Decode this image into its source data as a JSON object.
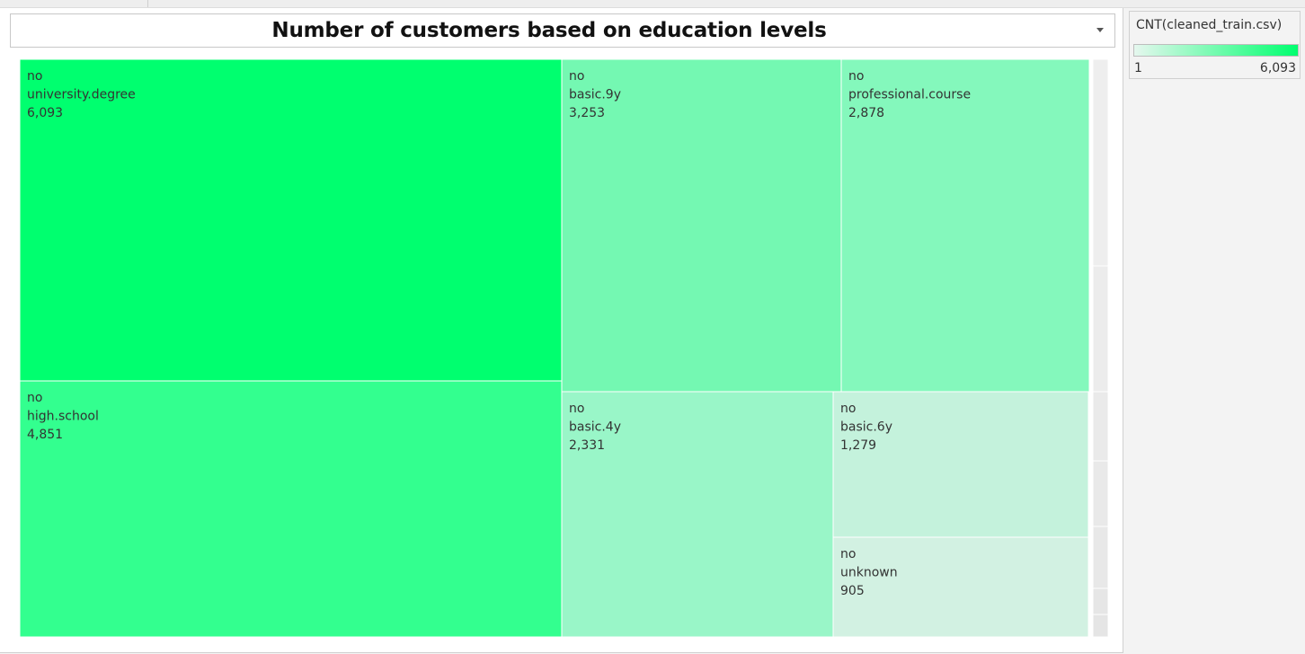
{
  "title": "Number of customers based on education levels",
  "legend": {
    "title": "CNT(cleaned_train.csv)",
    "min_label": "1",
    "max_label": "6,093",
    "color_low": "#e5f7ee",
    "color_high": "#00ff6f"
  },
  "chart_data": {
    "type": "treemap",
    "measure": "CNT(cleaned_train.csv)",
    "color_range": [
      1,
      6093
    ],
    "nodes": [
      {
        "group": "no",
        "category": "university.degree",
        "value": 6093,
        "label": "6,093",
        "color": "#00ff6f"
      },
      {
        "group": "no",
        "category": "high.school",
        "value": 4851,
        "label": "4,851",
        "color": "#33ff8f"
      },
      {
        "group": "no",
        "category": "basic.9y",
        "value": 3253,
        "label": "3,253",
        "color": "#74f8b2"
      },
      {
        "group": "no",
        "category": "professional.course",
        "value": 2878,
        "label": "2,878",
        "color": "#84f8bc"
      },
      {
        "group": "no",
        "category": "basic.4y",
        "value": 2331,
        "label": "2,331",
        "color": "#99f6c8"
      },
      {
        "group": "no",
        "category": "basic.6y",
        "value": 1279,
        "label": "1,279",
        "color": "#c4f2dc"
      },
      {
        "group": "no",
        "category": "unknown",
        "value": 905,
        "label": "905",
        "color": "#d2f1e2"
      }
    ]
  }
}
